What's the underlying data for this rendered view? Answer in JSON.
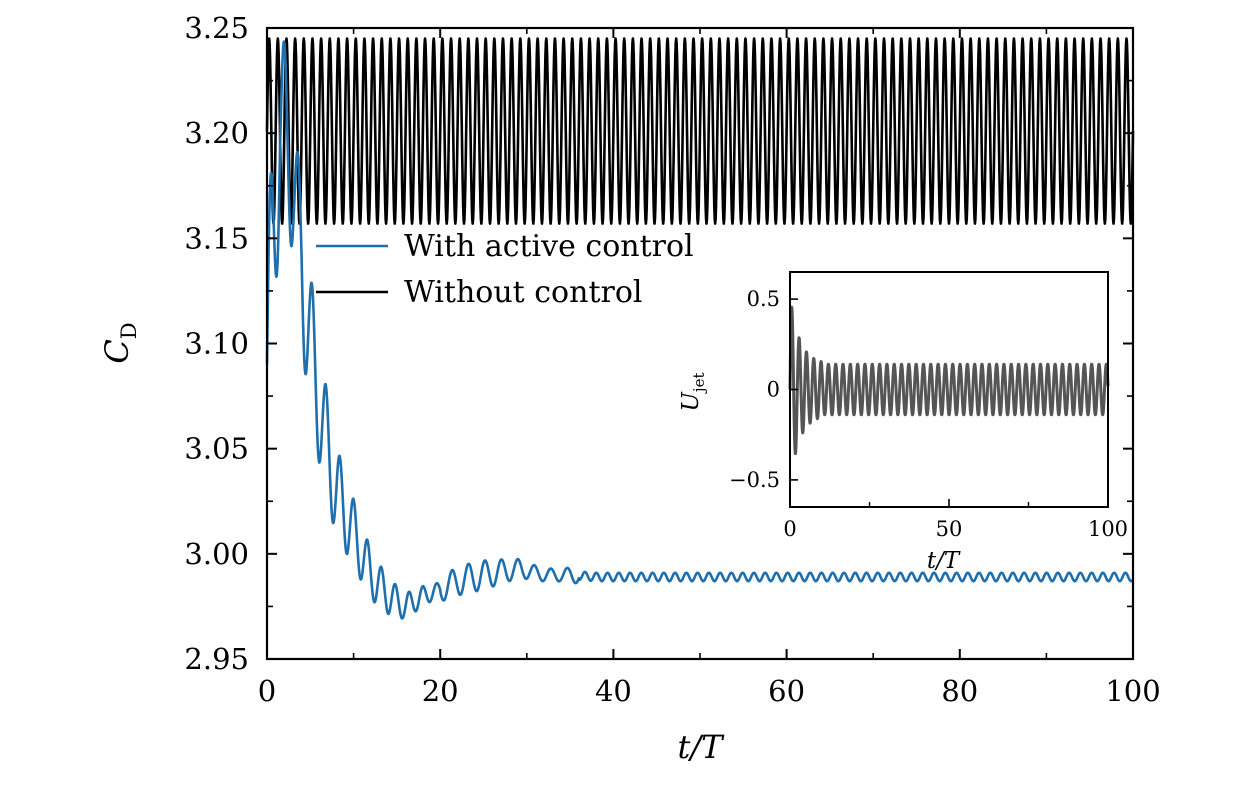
{
  "chart_data": [
    {
      "type": "line",
      "title": "",
      "xlabel": "t/T",
      "ylabel": "C_D",
      "ylabel_main": "C",
      "ylabel_sub": "D",
      "xlim": [
        0,
        100
      ],
      "ylim": [
        2.95,
        3.25
      ],
      "xticks": [
        0,
        20,
        40,
        60,
        80,
        100
      ],
      "xtick_labels": [
        "0",
        "20",
        "40",
        "60",
        "80",
        "100"
      ],
      "yticks": [
        2.95,
        3.0,
        3.05,
        3.1,
        3.15,
        3.2,
        3.25
      ],
      "ytick_labels": [
        "2.95",
        "3.00",
        "3.05",
        "3.10",
        "3.15",
        "3.20",
        "3.25"
      ],
      "grid": false,
      "legend_position": "upper-center",
      "series": [
        {
          "name": "With active control",
          "color": "#1f6fad",
          "description_points": {
            "x": [
              0,
              1.5,
              3,
              5,
              6.5,
              8,
              10,
              12,
              14,
              16,
              18,
              20,
              22,
              25,
              29,
              32,
              35,
              38,
              45,
              60,
              80,
              100
            ],
            "y": [
              3.09,
              3.21,
              3.18,
              3.1,
              3.06,
              3.03,
              3.01,
              2.99,
              2.98,
              2.975,
              2.98,
              2.983,
              2.987,
              2.99,
              2.993,
              2.99,
              2.99,
              2.989,
              2.989,
              2.989,
              2.989,
              2.989
            ]
          },
          "mean_final": 2.989,
          "amplitude_final": 0.002
        },
        {
          "name": "Without control",
          "color": "#000000",
          "mean": 3.201,
          "amplitude": 0.044,
          "period_tT": 1.0,
          "x_range": [
            0,
            100
          ]
        }
      ]
    },
    {
      "type": "line",
      "title": "",
      "xlabel": "t/T",
      "ylabel": "U_jet",
      "ylabel_main": "U",
      "ylabel_sub": "jet",
      "xlim": [
        0,
        100
      ],
      "ylim": [
        -0.65,
        0.65
      ],
      "xticks": [
        0,
        50,
        100
      ],
      "xtick_labels": [
        "0",
        "50",
        "100"
      ],
      "yticks": [
        0.5,
        0,
        -0.5
      ],
      "ytick_labels": [
        "0.5",
        "0",
        "−0.5"
      ],
      "grid": false,
      "series": [
        {
          "color": "#555555",
          "initial_amplitude": 0.52,
          "steady_amplitude": 0.14,
          "period_tT": 2.3,
          "x_range": [
            0,
            100
          ]
        }
      ]
    }
  ]
}
